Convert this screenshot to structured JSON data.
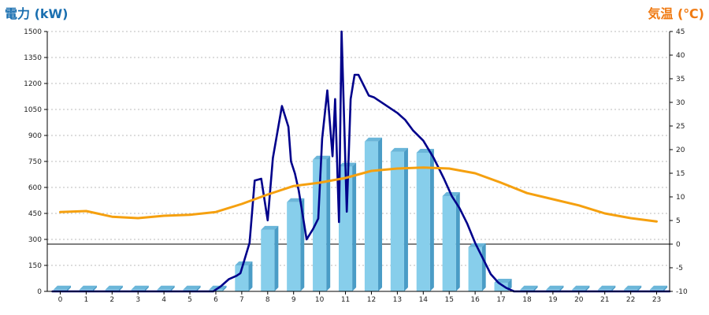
{
  "chart_data": {
    "type": "bar",
    "left_axis_title": "電力 (kW)",
    "right_axis_title": "気温 (℃)",
    "colors": {
      "left_title": "#1a6fb0",
      "right_title": "#f07a12",
      "bar_front": "#87ceeb",
      "bar_side": "#4a9cc6",
      "bar_top": "#6bb6d9",
      "power_line": "#00008b",
      "temp_line": "#f5a00f",
      "grid": "#bbbbbb"
    },
    "categories": [
      "0",
      "1",
      "2",
      "3",
      "4",
      "5",
      "6",
      "7",
      "8",
      "9",
      "10",
      "11",
      "12",
      "13",
      "14",
      "15",
      "16",
      "17",
      "18",
      "19",
      "20",
      "21",
      "22",
      "23"
    ],
    "left_axis": {
      "min": 0,
      "max": 1500,
      "ticks": [
        "0",
        "150",
        "300",
        "450",
        "600",
        "750",
        "900",
        "1050",
        "1200",
        "1350",
        "1500"
      ]
    },
    "right_axis": {
      "min": -10,
      "max": 45,
      "ticks": [
        "-10",
        "-5",
        "0",
        "5",
        "10",
        "15",
        "20",
        "25",
        "30",
        "35",
        "40",
        "45"
      ],
      "zero_line": 0
    },
    "grid": true,
    "series": [
      {
        "kind": "bar",
        "values": [
          10,
          10,
          10,
          10,
          10,
          10,
          10,
          150,
          355,
          515,
          760,
          720,
          865,
          805,
          800,
          550,
          255,
          50,
          10,
          10,
          10,
          10,
          10,
          10
        ]
      },
      {
        "kind": "line",
        "axis": "left",
        "x": [
          -0.3,
          5.9,
          6.2,
          6.5,
          6.8,
          6.95,
          7.3,
          7.5,
          7.75,
          8.0,
          8.2,
          8.55,
          8.8,
          8.9,
          9.05,
          9.2,
          9.5,
          9.75,
          9.95,
          10.1,
          10.3,
          10.5,
          10.6,
          10.75,
          10.85,
          11.05,
          11.2,
          11.35,
          11.5,
          11.9,
          12.1,
          12.2,
          12.4,
          12.7,
          13.0,
          13.3,
          13.6,
          14.0,
          14.4,
          14.8,
          15.1,
          15.4,
          15.7,
          16.0,
          16.3,
          16.6,
          16.9,
          17.2,
          17.5,
          23.5
        ],
        "values": [
          0,
          0,
          30,
          70,
          90,
          105,
          280,
          640,
          650,
          410,
          770,
          1070,
          950,
          750,
          680,
          580,
          300,
          360,
          420,
          880,
          1160,
          780,
          1110,
          400,
          1500,
          460,
          1110,
          1250,
          1250,
          1130,
          1120,
          1110,
          1090,
          1060,
          1030,
          990,
          930,
          870,
          770,
          650,
          550,
          480,
          390,
          280,
          190,
          100,
          50,
          20,
          0,
          0
        ]
      },
      {
        "kind": "line",
        "axis": "right",
        "x": [
          0,
          1,
          2,
          3,
          4,
          5,
          6,
          7,
          8,
          9,
          10,
          11,
          12,
          13,
          14,
          15,
          16,
          17,
          18,
          19,
          20,
          21,
          22,
          23
        ],
        "values": [
          6.8,
          7.0,
          5.8,
          5.5,
          6.0,
          6.2,
          6.8,
          8.5,
          10.5,
          12.3,
          13.0,
          14.0,
          15.5,
          16.0,
          16.2,
          16.0,
          15.0,
          13.0,
          10.8,
          9.5,
          8.2,
          6.5,
          5.5,
          4.8
        ]
      }
    ]
  }
}
